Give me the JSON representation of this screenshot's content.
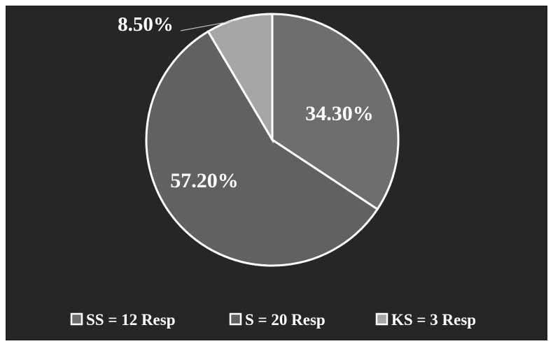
{
  "chart_data": {
    "type": "pie",
    "title": "",
    "slices": [
      {
        "label": "34.30%",
        "value": 34.3,
        "color": "#6e6e6e",
        "legend": "SS = 12 Resp",
        "legend_swatch": "#6e6e6e"
      },
      {
        "label": "57.20%",
        "value": 57.2,
        "color": "#616161",
        "legend": "S = 20 Resp",
        "legend_swatch": "#616161"
      },
      {
        "label": "8.50%",
        "value": 8.5,
        "color": "#a6a6a6",
        "legend": "KS = 3 Resp",
        "legend_swatch": "#a6a6a6"
      }
    ],
    "start_angle_deg": 0,
    "direction": "clockwise",
    "legend_position": "bottom",
    "background": "#262626",
    "slice_border_color": "#ffffff"
  }
}
